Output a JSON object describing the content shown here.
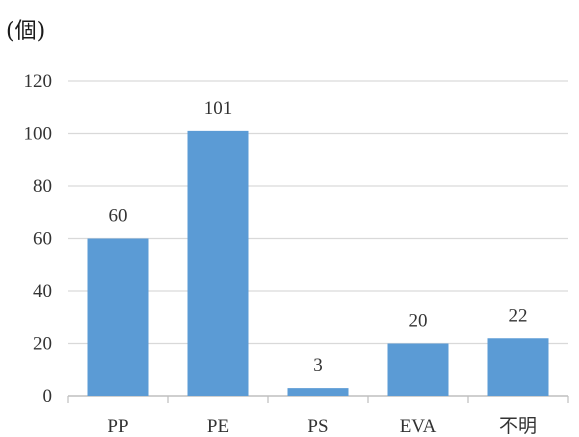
{
  "chart_data": {
    "type": "bar",
    "unit_label": "(個)",
    "categories": [
      "PP",
      "PE",
      "PS",
      "EVA",
      "不明"
    ],
    "values": [
      60,
      101,
      3,
      20,
      22
    ],
    "data_labels": [
      "60",
      "101",
      "3",
      "20",
      "22"
    ],
    "ylim": [
      0,
      120
    ],
    "yticks": [
      0,
      20,
      40,
      60,
      80,
      100,
      120
    ],
    "ytick_labels": [
      "0",
      "20",
      "40",
      "60",
      "80",
      "100",
      "120"
    ],
    "grid": true,
    "legend": "none",
    "bar_color": "#5b9bd5"
  }
}
